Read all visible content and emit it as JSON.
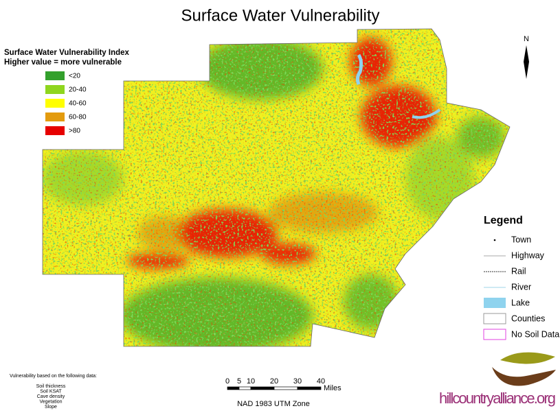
{
  "title": "Surface Water Vulnerability",
  "index_legend": {
    "title": [
      "Surface Water Vulnerability Index",
      "Higher value = more vulnerable"
    ],
    "items": [
      {
        "label": "<20",
        "color": "#33a02c"
      },
      {
        "label": "20-40",
        "color": "#8fd61e"
      },
      {
        "label": "40-60",
        "color": "#ffff00"
      },
      {
        "label": "60-80",
        "color": "#e39b0e"
      },
      {
        "label": ">80",
        "color": "#e60000"
      }
    ]
  },
  "north": "N",
  "legend": {
    "title": "Legend",
    "items": [
      "Town",
      "Highway",
      "Rail",
      "River",
      "Lake",
      "Counties",
      "No Soil Data"
    ]
  },
  "notes": {
    "heading": "Vulnerability based on the following data:",
    "items": [
      "Soil thickness",
      "Soil KSAT",
      "Cave density",
      "Vegetation",
      "Slope"
    ]
  },
  "scale": {
    "ticks": [
      0,
      5,
      10,
      20,
      30,
      40
    ],
    "unit": "Miles"
  },
  "projection": "NAD 1983 UTM Zone",
  "logo": "hillcountryalliance.org"
}
